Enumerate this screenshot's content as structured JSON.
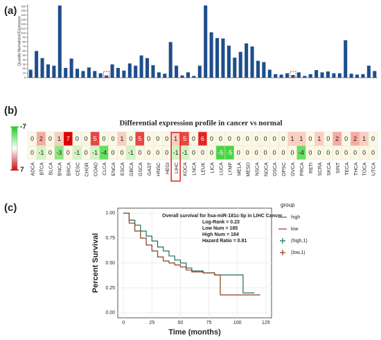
{
  "chart_data": [
    {
      "type": "bar",
      "panel_label": "(a)",
      "y_label": "Quantile Normalized Expression",
      "categories": [
        null,
        null,
        null,
        null,
        null,
        null,
        null,
        null,
        null,
        null,
        null,
        null,
        null,
        null,
        null,
        null,
        null,
        null,
        null,
        null,
        null,
        null,
        null,
        null,
        null,
        null,
        null,
        null,
        null,
        null,
        null,
        null,
        null,
        null,
        null,
        null,
        null,
        null,
        null,
        null,
        null,
        null,
        null,
        null,
        null,
        null,
        null,
        null,
        null,
        null,
        null,
        null,
        null,
        null,
        null,
        null,
        null,
        null,
        null,
        null
      ],
      "values": [
        18,
        60,
        44,
        30,
        27,
        162,
        22,
        43,
        20,
        15,
        23,
        15,
        10,
        5,
        30,
        22,
        16,
        32,
        27,
        50,
        44,
        28,
        12,
        9,
        80,
        27,
        5,
        12,
        4,
        27,
        162,
        102,
        89,
        88,
        72,
        45,
        58,
        77,
        70,
        38,
        35,
        18,
        8,
        7,
        10,
        6,
        12,
        4,
        8,
        17,
        12,
        14,
        10,
        10,
        84,
        9,
        7,
        8,
        27,
        15
      ],
      "color": "#1f4e8c",
      "ylim": [
        0,
        165
      ],
      "yticks": [
        0,
        10,
        20,
        30,
        40,
        50,
        60,
        70,
        80,
        90,
        100,
        110,
        120,
        130,
        140,
        150,
        160
      ]
    },
    {
      "type": "heatmap",
      "panel_label": "(b)",
      "title": "Differential expression profile in cancer vs normal",
      "columns": [
        "ADCA",
        "BTCA",
        "BLCA",
        "BNCA",
        "BRCA",
        "CESC",
        "CHOR",
        "COAD",
        "CLCA",
        "ENCA",
        "ESCA",
        "GBCA",
        "GSCA",
        "GAST",
        "HNSC",
        "HEGI",
        "LIHC",
        "KOCA",
        "LNCA",
        "LEUK",
        "LICA",
        "LUCA",
        "LYMP",
        "MELA",
        "MESO",
        "NSCA",
        "NOCA",
        "OSCA",
        "OPSC",
        "OVCA",
        "PRCA",
        "RETI",
        "SCRA",
        "SKCA",
        "SINT",
        "TECA",
        "THCA",
        "TOCA",
        "UTCA"
      ],
      "rows": [
        [
          0,
          2,
          0,
          1,
          7,
          0,
          0,
          5,
          0,
          0,
          1,
          0,
          5,
          0,
          0,
          0,
          1,
          5,
          0,
          6,
          0,
          0,
          0,
          0,
          0,
          0,
          0,
          0,
          0,
          1,
          1,
          0,
          1,
          0,
          2,
          0,
          2,
          1,
          0
        ],
        [
          0,
          -1,
          0,
          -3,
          0,
          -1,
          0,
          -1,
          -4,
          0,
          0,
          -1,
          0,
          0,
          0,
          0,
          -1,
          -1,
          0,
          0,
          0,
          -5,
          -5,
          0,
          0,
          0,
          0,
          0,
          0,
          0,
          -4,
          0,
          0,
          0,
          0,
          0,
          0,
          0,
          0
        ]
      ],
      "colorbar_ticks": [
        -7,
        7
      ],
      "highlight": "LIHC"
    },
    {
      "type": "line",
      "panel_label": "(c)",
      "annotation": [
        "Overall survival for hsa-miR-181c-5p in LIHC Cancer",
        "Log-Rank = 0.23",
        "Low Num = 185",
        "High Num = 184",
        "Hazard Ratio = 0.81"
      ],
      "x_label": "Time (months)",
      "y_label": "Percent Survival",
      "legend_title": "group",
      "series": [
        {
          "name": "high",
          "color": "#1e6b5c",
          "x": [
            0,
            5,
            10,
            15,
            20,
            25,
            30,
            35,
            40,
            45,
            50,
            55,
            60,
            70,
            80,
            85,
            90,
            95,
            105,
            110,
            115
          ],
          "values": [
            1,
            0.93,
            0.88,
            0.82,
            0.77,
            0.72,
            0.66,
            0.62,
            0.57,
            0.53,
            0.5,
            0.45,
            0.42,
            0.4,
            0.38,
            0.38,
            0.38,
            0.38,
            0.2,
            0.2,
            0.2
          ]
        },
        {
          "name": "low",
          "color": "#8b3a1a",
          "x": [
            0,
            5,
            10,
            15,
            20,
            25,
            30,
            35,
            40,
            45,
            50,
            55,
            60,
            70,
            80,
            85,
            90,
            100,
            120
          ],
          "values": [
            1,
            0.9,
            0.82,
            0.75,
            0.68,
            0.62,
            0.56,
            0.52,
            0.5,
            0.48,
            0.46,
            0.43,
            0.41,
            0.4,
            0.38,
            0.18,
            0.18,
            0.18,
            0.18
          ]
        }
      ],
      "censor_legend": [
        "(high,1)",
        "(low,1)"
      ],
      "xlim": [
        -5,
        130
      ],
      "ylim": [
        -0.05,
        1.05
      ],
      "xticks": [
        0,
        25,
        50,
        75,
        100,
        125
      ],
      "yticks": [
        {
          "value": 0,
          "label": "0.00"
        },
        {
          "value": 0.25,
          "label": "0.25"
        },
        {
          "value": 0.5,
          "label": "0.50"
        },
        {
          "value": 0.75,
          "label": "0.75"
        },
        {
          "value": 1,
          "label": "1.00"
        }
      ]
    }
  ]
}
